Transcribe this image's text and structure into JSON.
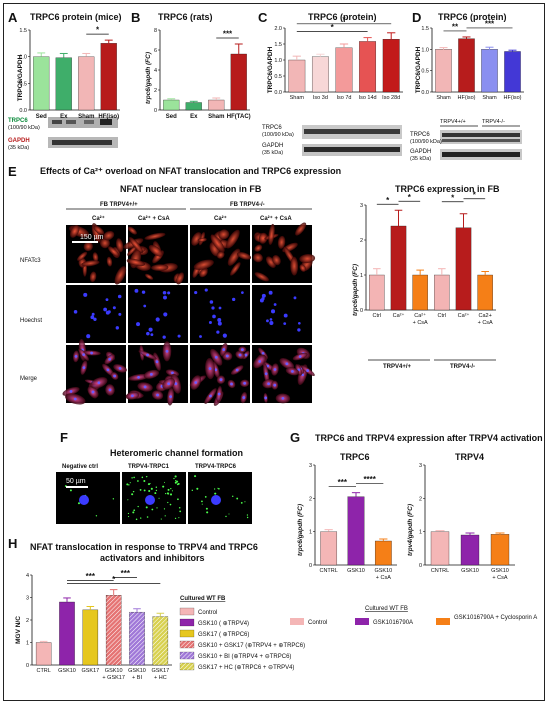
{
  "panels": {
    "A": {
      "letter": "A",
      "title": "TRPC6 protein (mice)",
      "ylabel": "TRPC6/GAPDH",
      "blot_labels": [
        "TRPC6",
        "(100/90 kDa)",
        "GAPDH",
        "(35 kDa)"
      ]
    },
    "B": {
      "letter": "B",
      "title": "TRPC6 (rats)",
      "ylabel": "trpc6/gapdh (FC)"
    },
    "C": {
      "letter": "C",
      "title": "TRPC6 (protein)",
      "ylabel": "TRPC6/GAPDH",
      "blot_labels": [
        "TRPC6",
        "(100/90 kDa)",
        "GAPDH",
        "(35 kDa)"
      ]
    },
    "D": {
      "letter": "D",
      "title": "TRPC6 (protein)",
      "ylabel": "TRPC6/GAPDH",
      "group_labels": [
        "TRPV4+/+",
        "TRPV4-/-"
      ],
      "blot_labels": [
        "TRPC6",
        "(100/90 kDa)",
        "GAPDH",
        "(35 kDa)"
      ]
    },
    "E": {
      "letter": "E",
      "title": "Effects of Ca²⁺ overload on NFAT translocation and TRPC6 expression",
      "sub_left": "NFAT nuclear translocation in FB",
      "sub_right": "TRPC6 expression in FB",
      "geno_left": "FB TRPV4+/+",
      "geno_right": "FB TRPV4-/-",
      "cols": [
        "Ca²⁺",
        "Ca²⁺ + CsA",
        "Ca²⁺",
        "Ca²⁺ + CsA"
      ],
      "rows": [
        "NFATc3",
        "Hoechst",
        "Merge"
      ],
      "scale": "150 µm",
      "ylabel": "trpc6/gapdh (FC)",
      "group_labels": [
        "TRPV4+/+",
        "TRPV4-/-"
      ]
    },
    "F": {
      "letter": "F",
      "title": "Heteromeric channel formation",
      "cols": [
        "Negative ctrl",
        "TRPV4-TRPC1",
        "TRPV4-TRPC6"
      ],
      "scale": "50 µm"
    },
    "G": {
      "letter": "G",
      "title": "TRPC6 and TRPV4 expression after TRPV4 activation",
      "left_title": "TRPC6",
      "right_title": "TRPV4",
      "left_ylabel": "trpc6/gapdh (FC)",
      "right_ylabel": "trpv4/gapdh (FC)",
      "legend_title": "Cultured WT FB",
      "legend": [
        "Control",
        "GSK1016790A",
        "GSK1016790A + Cyclosporin A"
      ]
    },
    "H": {
      "letter": "H",
      "title_line1": "NFAT translocation in response to TRPV4 and TRPC6",
      "title_line2": "activators and inhibitors",
      "ylabel": "MGV N/C",
      "legend_title": "Cultured WT FB",
      "legend": [
        "Control",
        "GSK10 ( ⊕TRPV4)",
        "GSK17 ( ⊕TRPC6)",
        "GSK10 + GSK17 (⊕TRPV4 + ⊕TRPC6)",
        "GSK10 + BI (⊕TRPV4 + ⊖TRPC6)",
        "GSK17 + HC (⊕TRPC6 + ⊖TRPV4)"
      ]
    }
  },
  "chart_data": [
    {
      "panel": "A",
      "type": "bar",
      "categories": [
        "Sed",
        "Ex",
        "Sham",
        "HF(iso)"
      ],
      "values": [
        1.0,
        0.98,
        1.0,
        1.25
      ],
      "errors": [
        0.07,
        0.08,
        0.06,
        0.06
      ],
      "ylim": [
        0,
        1.5
      ],
      "yticks": [
        "0.0",
        "0.5",
        "1.0",
        "1.5"
      ],
      "colors": [
        "#9be39b",
        "#3fae6a",
        "#f2b6b6",
        "#b71c1c"
      ],
      "significance": [
        {
          "from": 2,
          "to": 3,
          "label": "*"
        }
      ]
    },
    {
      "panel": "B",
      "type": "bar",
      "categories": [
        "Sed",
        "Ex",
        "Sham",
        "HF(TAC)"
      ],
      "values": [
        1.0,
        0.75,
        1.0,
        5.6
      ],
      "errors": [
        0.12,
        0.12,
        0.2,
        1.0
      ],
      "ylim": [
        0,
        8
      ],
      "yticks": [
        "0",
        "2",
        "4",
        "6",
        "8"
      ],
      "colors": [
        "#9be39b",
        "#3fae6a",
        "#f2b6b6",
        "#b71c1c"
      ],
      "significance": [
        {
          "from": 2,
          "to": 3,
          "label": "***"
        }
      ]
    },
    {
      "panel": "C",
      "type": "bar",
      "categories": [
        "Sham",
        "Iso 3d",
        "Iso 7d",
        "Iso 14d",
        "Iso 28d"
      ],
      "values": [
        1.0,
        1.1,
        1.38,
        1.58,
        1.65
      ],
      "errors": [
        0.12,
        0.08,
        0.12,
        0.12,
        0.2
      ],
      "ylim": [
        0,
        2.0
      ],
      "yticks": [
        "0.0",
        "0.5",
        "1.0",
        "1.5",
        "2.0"
      ],
      "colors": [
        "#f2b6b6",
        "#f7d7d7",
        "#f39a9a",
        "#e65353",
        "#c21a1a"
      ],
      "significance": [
        {
          "from": 0,
          "to": 3,
          "label": "*"
        },
        {
          "from": 0,
          "to": 4,
          "label": "*"
        }
      ]
    },
    {
      "panel": "D",
      "type": "bar",
      "categories": [
        "Sham",
        "HF(iso)",
        "Sham",
        "HF(iso)"
      ],
      "values": [
        1.0,
        1.25,
        1.0,
        0.95
      ],
      "errors": [
        0.04,
        0.04,
        0.05,
        0.03
      ],
      "ylim": [
        0,
        1.5
      ],
      "yticks": [
        "0.0",
        "0.5",
        "1.0",
        "1.5"
      ],
      "colors": [
        "#f2b6b6",
        "#b71c1c",
        "#8a8ff0",
        "#4338d6"
      ],
      "significance": [
        {
          "from": 0,
          "to": 1,
          "label": "**"
        },
        {
          "from": 1,
          "to": 3,
          "label": "***"
        }
      ]
    },
    {
      "panel": "E",
      "type": "bar",
      "categories": [
        "Ctrl",
        "Ca²⁺",
        "Ca²⁺ + CsA",
        "Ctrl",
        "Ca²⁺",
        "Ca2+ + CsA"
      ],
      "values": [
        1.0,
        2.4,
        1.0,
        1.0,
        2.35,
        1.0
      ],
      "errors": [
        0.18,
        0.45,
        0.14,
        0.18,
        0.4,
        0.1
      ],
      "ylim": [
        0,
        3
      ],
      "yticks": [
        "0",
        "1",
        "2",
        "3"
      ],
      "colors": [
        "#f3b4b4",
        "#b71c1c",
        "#f57f17",
        "#f3b4b4",
        "#b71c1c",
        "#f57f17"
      ],
      "significance": [
        {
          "from": 0,
          "to": 1,
          "label": "*"
        },
        {
          "from": 1,
          "to": 2,
          "label": "*"
        },
        {
          "from": 3,
          "to": 4,
          "label": "*"
        },
        {
          "from": 4,
          "to": 5,
          "label": "*"
        }
      ]
    },
    {
      "panel": "G-TRPC6",
      "type": "bar",
      "categories": [
        "CNTRL",
        "GSK10",
        "GSK10 + CsA"
      ],
      "values": [
        1.0,
        2.05,
        0.72
      ],
      "errors": [
        0.06,
        0.12,
        0.06
      ],
      "ylim": [
        0,
        3
      ],
      "yticks": [
        "0",
        "1",
        "2",
        "3"
      ],
      "colors": [
        "#f4b6b6",
        "#8e24aa",
        "#f57f17"
      ],
      "significance": [
        {
          "from": 0,
          "to": 1,
          "label": "***"
        },
        {
          "from": 1,
          "to": 2,
          "label": "****"
        }
      ]
    },
    {
      "panel": "G-TRPV4",
      "type": "bar",
      "categories": [
        "CNTRL",
        "GSK10",
        "GSK10 + CsA"
      ],
      "values": [
        1.0,
        0.9,
        0.92
      ],
      "errors": [
        0.03,
        0.06,
        0.04
      ],
      "ylim": [
        0,
        3
      ],
      "yticks": [
        "0",
        "1",
        "2",
        "3"
      ],
      "colors": [
        "#f4b6b6",
        "#8e24aa",
        "#f57f17"
      ],
      "significance": []
    },
    {
      "panel": "H",
      "type": "bar",
      "categories": [
        "CTRL",
        "GSK10",
        "GSK17",
        "GSK10 + GSK17",
        "GSK10 + BI",
        "GSK17 + HC"
      ],
      "values": [
        1.0,
        2.8,
        2.45,
        3.1,
        2.35,
        2.15
      ],
      "errors": [
        0.05,
        0.18,
        0.15,
        0.25,
        0.15,
        0.15
      ],
      "ylim": [
        0,
        4
      ],
      "yticks": [
        "0",
        "1",
        "2",
        "3",
        "4"
      ],
      "colors": [
        "#f4b6b6",
        "#8e24aa",
        "#e6c71e",
        "#e57373",
        "#a078d8",
        "#d8d150"
      ],
      "hatched": [
        false,
        false,
        false,
        true,
        true,
        true
      ],
      "significance": [
        {
          "from": 1,
          "to": 5,
          "label": "*"
        },
        {
          "from": 1,
          "to": 3,
          "label": "***"
        },
        {
          "from": 3,
          "to": 4,
          "label": "***"
        }
      ]
    }
  ]
}
